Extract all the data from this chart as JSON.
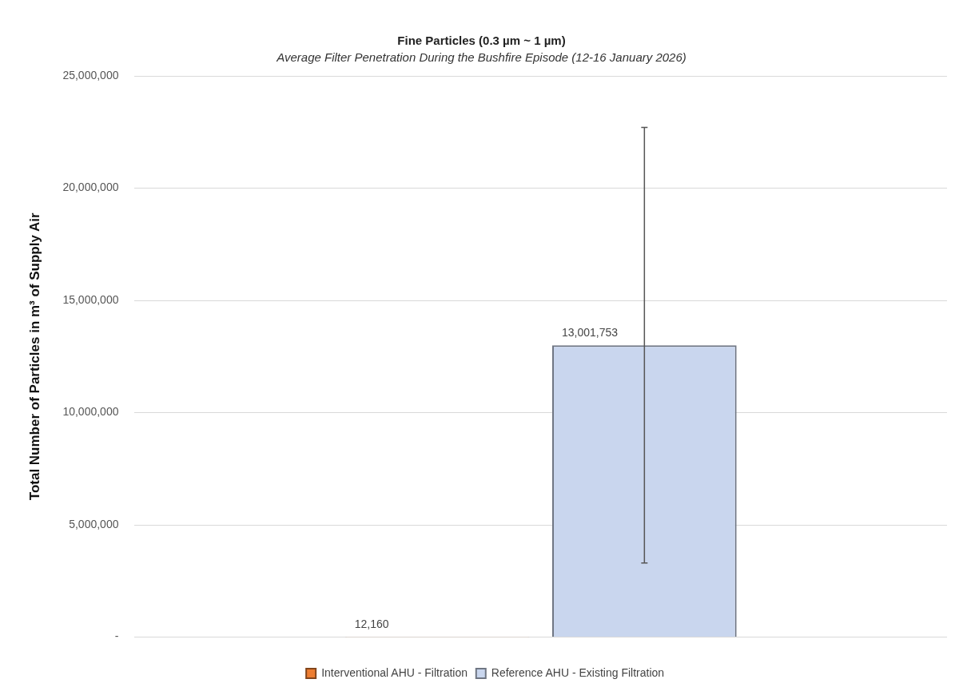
{
  "chart_data": {
    "type": "bar",
    "title": "Fine Particles  (0.3 µm ~ 1 µm)",
    "subtitle": "Average Filter Penetration During the Bushfire Episode (12-16 January 2026)",
    "ylabel": "Total Number of Particles in m³ of Supply Air",
    "categories": [
      null
    ],
    "series": [
      {
        "name": "Interventional AHU - Filtration",
        "color": "#ed7d31",
        "values": [
          12160
        ],
        "value_labels": [
          "12,160"
        ]
      },
      {
        "name": "Reference AHU - Existing Filtration",
        "color": "#c9d6ee",
        "values": [
          13001753
        ],
        "value_labels": [
          "13,001,753"
        ],
        "errors": [
          9700000
        ]
      }
    ],
    "ylim": [
      0,
      25000000
    ],
    "yticks": [
      {
        "value": 0,
        "label": "-"
      },
      {
        "value": 5000000,
        "label": "5,000,000"
      },
      {
        "value": 10000000,
        "label": "10,000,000"
      },
      {
        "value": 15000000,
        "label": "15,000,000"
      },
      {
        "value": 20000000,
        "label": "20,000,000"
      },
      {
        "value": 25000000,
        "label": "25,000,000"
      }
    ],
    "grid": "y",
    "legend": "bottom"
  }
}
